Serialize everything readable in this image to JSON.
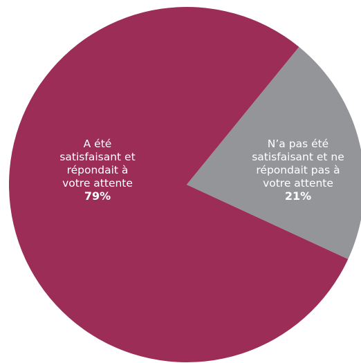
{
  "chart_data": {
    "type": "pie",
    "title": "",
    "slices": [
      {
        "label_lines": [
          "A été",
          "satisfaisant et",
          "répondait à",
          "votre attente"
        ],
        "value": 79,
        "value_label": "79%",
        "color": "#9c2d56"
      },
      {
        "label_lines": [
          "N’a pas été",
          "satisfaisant et ne",
          "répondait pas à",
          "votre attente"
        ],
        "value": 21,
        "value_label": "21%",
        "color": "#939598"
      }
    ]
  }
}
